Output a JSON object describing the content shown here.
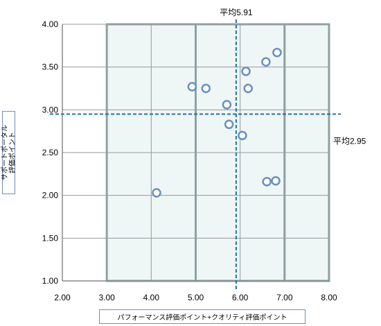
{
  "chart_data": {
    "type": "scatter",
    "xlabel": "パフォーマンス評価ポイント+クオリティ評価ポイント",
    "ylabel": "サポートポータル\n評価ポイント",
    "xlim": [
      2.0,
      8.0
    ],
    "ylim": [
      1.0,
      4.0
    ],
    "x_ticks": [
      "2.00",
      "3.00",
      "4.00",
      "5.00",
      "6.00",
      "7.00",
      "8.00"
    ],
    "y_ticks": [
      "1.00",
      "1.50",
      "2.00",
      "2.50",
      "3.00",
      "3.50",
      "4.00"
    ],
    "grid": true,
    "points": [
      {
        "x": 4.12,
        "y": 2.03
      },
      {
        "x": 4.92,
        "y": 3.27
      },
      {
        "x": 5.23,
        "y": 3.25
      },
      {
        "x": 5.7,
        "y": 3.06
      },
      {
        "x": 5.75,
        "y": 2.83
      },
      {
        "x": 6.05,
        "y": 2.7
      },
      {
        "x": 6.13,
        "y": 3.45
      },
      {
        "x": 6.18,
        "y": 3.25
      },
      {
        "x": 6.58,
        "y": 3.56
      },
      {
        "x": 6.6,
        "y": 2.16
      },
      {
        "x": 6.8,
        "y": 2.17
      },
      {
        "x": 6.83,
        "y": 3.67
      }
    ],
    "mean_x": {
      "value": 5.91,
      "label": "平均5.91"
    },
    "mean_y": {
      "value": 2.95,
      "label": "平均2.95"
    },
    "colors": {
      "marker": "#6a8fc0",
      "mean_line": "#1f6fb5",
      "band_fill": "#eef6f6",
      "band_border": "#8aa6a4",
      "grid": "#999999"
    }
  }
}
